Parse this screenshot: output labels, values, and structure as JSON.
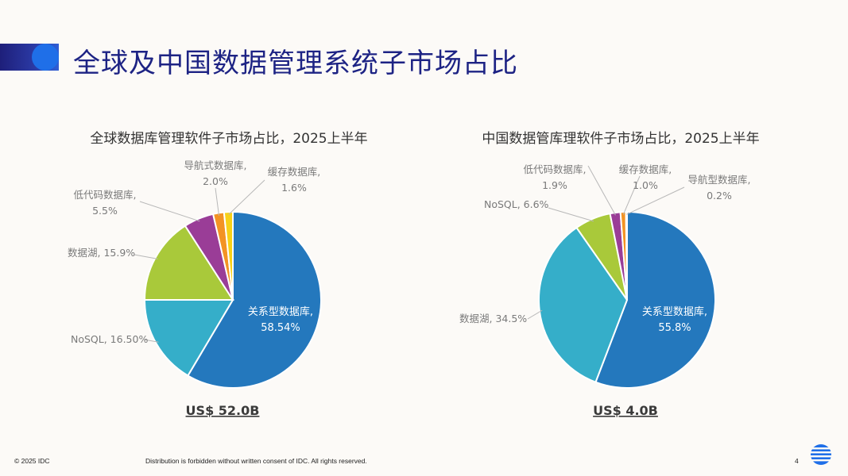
{
  "title": "全球及中国数据管理系统子市场占比",
  "chart_data": [
    {
      "type": "pie",
      "title": "全球数据库管理软件子市场占比，2025上半年",
      "total_label": "US$ 52.0B",
      "slices": [
        {
          "name": "关系型数据库",
          "value": 58.54,
          "value_label": "58.54%",
          "color": "#2478bd"
        },
        {
          "name": "NoSQL",
          "value": 16.5,
          "value_label": "16.50%",
          "color": "#35aec9"
        },
        {
          "name": "数据湖",
          "value": 15.9,
          "value_label": "15.9%",
          "color": "#a9c93a"
        },
        {
          "name": "低代码数据库",
          "value": 5.5,
          "value_label": "5.5%",
          "color": "#9a3d97"
        },
        {
          "name": "导航式数据库",
          "value": 2.0,
          "value_label": "2.0%",
          "color": "#f39323"
        },
        {
          "name": "缓存数据库",
          "value": 1.6,
          "value_label": "1.6%",
          "color": "#f7d117"
        }
      ]
    },
    {
      "type": "pie",
      "title": "中国数据管库理软件子市场占比，2025上半年",
      "total_label": "US$ 4.0B",
      "slices": [
        {
          "name": "关系型数据库",
          "value": 55.8,
          "value_label": "55.8%",
          "color": "#2478bd"
        },
        {
          "name": "数据湖",
          "value": 34.5,
          "value_label": "34.5%",
          "color": "#35aec9"
        },
        {
          "name": "NoSQL",
          "value": 6.6,
          "value_label": "6.6%",
          "color": "#a9c93a"
        },
        {
          "name": "低代码数据库",
          "value": 1.9,
          "value_label": "1.9%",
          "color": "#9a3d97"
        },
        {
          "name": "缓存数据库",
          "value": 1.0,
          "value_label": "1.0%",
          "color": "#f39323"
        },
        {
          "name": "导航型数据库",
          "value": 0.2,
          "value_label": "0.2%",
          "color": "#f7d117"
        }
      ]
    }
  ],
  "footer": {
    "copyright": "© 2025 IDC",
    "notice": "Distribution is forbidden without written consent of IDC. All rights reserved.",
    "page_number": "4"
  }
}
